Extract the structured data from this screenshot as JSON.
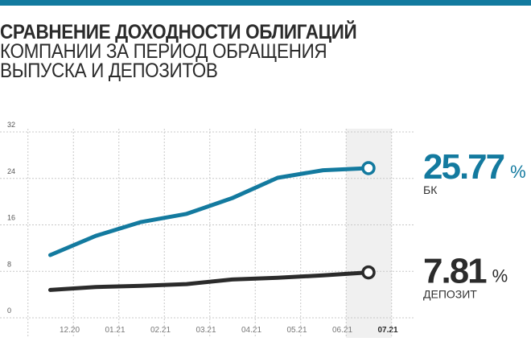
{
  "title": {
    "line1": "Сравнение доходности облигаций",
    "line2": "компании за период обращения",
    "line3": "выпуска и депозитов"
  },
  "colors": {
    "accent": "#137a9f",
    "bonds": "#137a9f",
    "deposit": "#2b2b2b",
    "highlight": "#f0f0f0",
    "grid": "#c8c8c8"
  },
  "chart_data": {
    "type": "line",
    "categories": [
      "12.20",
      "01.21",
      "02.21",
      "03.21",
      "04.21",
      "05.21",
      "06.21",
      "07.21"
    ],
    "highlighted_category": "07.21",
    "y_ticks": [
      "0",
      "8",
      "16",
      "24",
      "32"
    ],
    "ylim": [
      0,
      32
    ],
    "grid": true,
    "series": [
      {
        "name": "БК",
        "color": "#137a9f",
        "values": [
          10.8,
          14.1,
          16.5,
          17.9,
          20.6,
          24.1,
          25.4,
          25.77
        ],
        "end_value": "25.77",
        "unit": "%"
      },
      {
        "name": "ДЕПОЗИТ",
        "color": "#2b2b2b",
        "values": [
          4.8,
          5.3,
          5.5,
          5.8,
          6.6,
          6.9,
          7.3,
          7.81
        ],
        "end_value": "7.81",
        "unit": "%"
      }
    ]
  }
}
